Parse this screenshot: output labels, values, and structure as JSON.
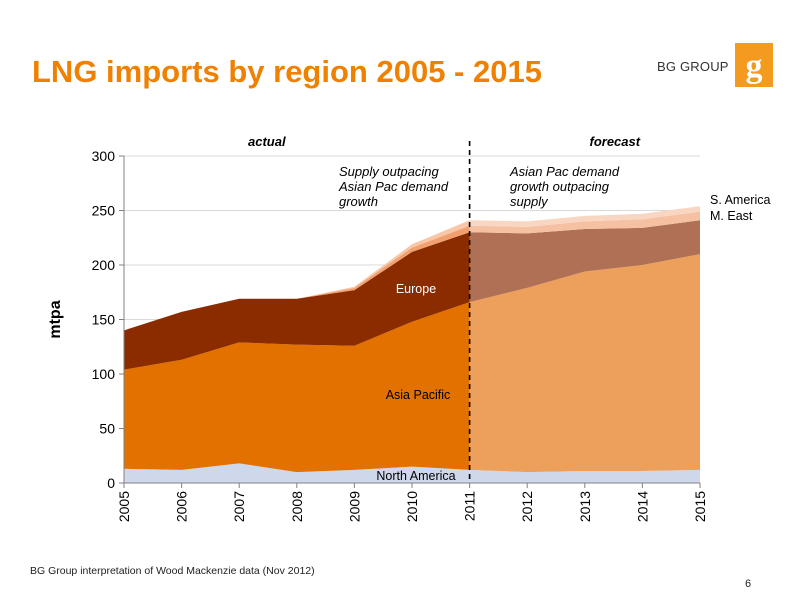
{
  "slide": {
    "title": "LNG imports by region 2005 - 2015",
    "brand": "BG GROUP",
    "source": "BG Group interpretation of Wood Mackenzie data (Nov 2012)",
    "page_number": "6"
  },
  "colors": {
    "title": "#f08000",
    "logo": "#f39a1f",
    "north_america": "#cfd7ea",
    "asia_pacific_actual": "#e27100",
    "asia_pacific_forecast": "#eca05c",
    "europe_actual": "#8a2b00",
    "europe_forecast": "#b07055",
    "middle_east_actual": "#f3a070",
    "middle_east_forecast": "#f6c0a3",
    "south_america_actual": "#f7c7a8",
    "south_america_forecast": "#f9d6c2"
  },
  "chart_data": {
    "type": "area",
    "stacked": true,
    "x": [
      2005,
      2006,
      2007,
      2008,
      2009,
      2010,
      2011,
      2012,
      2013,
      2014,
      2015
    ],
    "xlabel": "",
    "ylabel": "mtpa",
    "ylim": [
      0,
      300
    ],
    "yticks": [
      0,
      50,
      100,
      150,
      200,
      250,
      300
    ],
    "grid": "horizontal",
    "forecast_start": 2011,
    "period_labels": {
      "actual": "actual",
      "forecast": "forecast"
    },
    "series": [
      {
        "name": "North America",
        "key": "north_america",
        "values": [
          13,
          12,
          18,
          10,
          12,
          15,
          12,
          10,
          11,
          11,
          12
        ]
      },
      {
        "name": "Asia Pacific",
        "key": "asia_pacific",
        "values": [
          91,
          101,
          111,
          117,
          114,
          133,
          154,
          169,
          183,
          189,
          198
        ]
      },
      {
        "name": "Europe",
        "key": "europe",
        "values": [
          36,
          44,
          40,
          42,
          51,
          64,
          64,
          50,
          39,
          34,
          31
        ]
      },
      {
        "name": "M. East",
        "key": "middle_east",
        "values": [
          0,
          0,
          0,
          0,
          2,
          4,
          6,
          6,
          7,
          8,
          8
        ]
      },
      {
        "name": "S. America",
        "key": "south_america",
        "values": [
          0,
          0,
          0,
          0,
          1,
          3,
          5,
          5,
          5,
          5,
          5
        ]
      }
    ],
    "annotations": [
      {
        "id": "supply-note",
        "lines": [
          "Supply outpacing",
          "Asian Pac demand",
          "growth"
        ]
      },
      {
        "id": "demand-note",
        "lines": [
          "Asian Pac demand",
          "growth outpacing",
          "supply"
        ]
      }
    ]
  }
}
